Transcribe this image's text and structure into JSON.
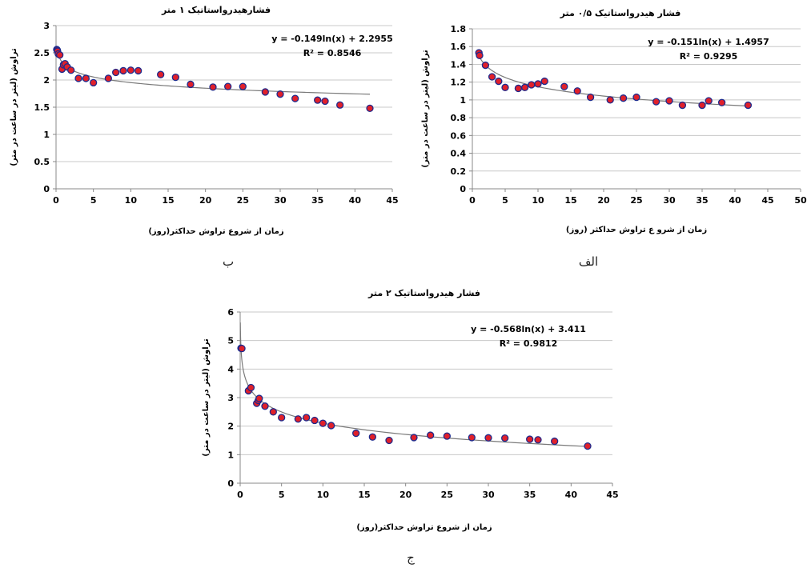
{
  "colors": {
    "marker_fill": "#e0202a",
    "marker_edge": "#1f2a8c",
    "grid": "#c8c8c8",
    "trend": "#7a7a7a"
  },
  "captions": [
    "ب",
    "الف",
    "ج"
  ],
  "chart_data": [
    {
      "type": "scatter",
      "title": "فشارهیدرواستاتیک ۱ متر",
      "xlabel": "زمان از شروع تراوش حداکثر(روز)",
      "ylabel": "تراوش (لیتر در ساعت در متر)",
      "xlim": [
        0,
        45
      ],
      "ylim": [
        0,
        3
      ],
      "xticks": [
        0,
        5,
        10,
        15,
        20,
        25,
        30,
        35,
        40,
        45
      ],
      "yticks": [
        0,
        0.5,
        1,
        1.5,
        2,
        2.5,
        3
      ],
      "grid": "horizontal",
      "trendline": {
        "type": "log",
        "a": -0.149,
        "b": 2.2955,
        "x_range": [
          0.2,
          42
        ]
      },
      "equation": "y = -0.149ln(x) + 2.2955",
      "r2": "R² = 0.8546",
      "points": [
        [
          0.1,
          2.56
        ],
        [
          0.15,
          2.55
        ],
        [
          0.2,
          2.53
        ],
        [
          0.3,
          2.48
        ],
        [
          0.5,
          2.46
        ],
        [
          0.8,
          2.2
        ],
        [
          1,
          2.28
        ],
        [
          1.2,
          2.3
        ],
        [
          1.5,
          2.24
        ],
        [
          2,
          2.18
        ],
        [
          3,
          2.03
        ],
        [
          4,
          2.03
        ],
        [
          5,
          1.95
        ],
        [
          7,
          2.03
        ],
        [
          8,
          2.14
        ],
        [
          9,
          2.17
        ],
        [
          10,
          2.18
        ],
        [
          11,
          2.17
        ],
        [
          14,
          2.1
        ],
        [
          16,
          2.05
        ],
        [
          18,
          1.92
        ],
        [
          21,
          1.87
        ],
        [
          23,
          1.88
        ],
        [
          25,
          1.88
        ],
        [
          28,
          1.78
        ],
        [
          30,
          1.74
        ],
        [
          32,
          1.66
        ],
        [
          35,
          1.63
        ],
        [
          36,
          1.61
        ],
        [
          38,
          1.54
        ],
        [
          42,
          1.48
        ]
      ]
    },
    {
      "type": "scatter",
      "title": "فشار هیدرواستاتیک ۰/۵ متر",
      "xlabel": "زمان از شرو ع تراوش حداکثر (روز)",
      "ylabel": "تراوش (لیتر در ساعت در متر)",
      "xlim": [
        0,
        50
      ],
      "ylim": [
        0,
        1.8
      ],
      "xticks": [
        0,
        5,
        10,
        15,
        20,
        25,
        30,
        35,
        40,
        45,
        50
      ],
      "yticks": [
        0,
        0.2,
        0.4,
        0.6,
        0.8,
        1,
        1.2,
        1.4,
        1.6,
        1.8
      ],
      "grid": "horizontal",
      "trendline": {
        "type": "log",
        "a": -0.151,
        "b": 1.4957,
        "x_range": [
          1,
          42
        ]
      },
      "equation": "y = -0.151ln(x) + 1.4957",
      "r2": "R² = 0.9295",
      "points": [
        [
          1,
          1.53
        ],
        [
          1.1,
          1.5
        ],
        [
          2,
          1.39
        ],
        [
          3,
          1.26
        ],
        [
          4,
          1.21
        ],
        [
          5,
          1.14
        ],
        [
          7,
          1.13
        ],
        [
          8,
          1.14
        ],
        [
          9,
          1.17
        ],
        [
          10,
          1.18
        ],
        [
          11,
          1.21
        ],
        [
          14,
          1.15
        ],
        [
          16,
          1.1
        ],
        [
          18,
          1.03
        ],
        [
          21,
          1.0
        ],
        [
          23,
          1.02
        ],
        [
          25,
          1.03
        ],
        [
          28,
          0.98
        ],
        [
          30,
          0.99
        ],
        [
          32,
          0.94
        ],
        [
          35,
          0.94
        ],
        [
          36,
          0.99
        ],
        [
          38,
          0.97
        ],
        [
          42,
          0.94
        ]
      ]
    },
    {
      "type": "scatter",
      "title": "فشار هیدرواستاتیک ۲ متر",
      "xlabel": "زمان از شروع تراوش حداکثر(روز)",
      "ylabel": "تراوش (لیتر در ساعت در متر)",
      "xlim": [
        0,
        45
      ],
      "ylim": [
        0,
        6
      ],
      "xticks": [
        0,
        5,
        10,
        15,
        20,
        25,
        30,
        35,
        40,
        45
      ],
      "yticks": [
        0,
        1,
        2,
        3,
        4,
        5,
        6
      ],
      "grid": "horizontal",
      "trendline": {
        "type": "log",
        "a": -0.568,
        "b": 3.411,
        "x_range": [
          0.02,
          42
        ]
      },
      "equation": "y = -0.568ln(x) + 3.411",
      "r2": "R² = 0.9812",
      "points": [
        [
          0.1,
          4.73
        ],
        [
          0.2,
          4.72
        ],
        [
          1,
          3.24
        ],
        [
          1.3,
          3.35
        ],
        [
          2,
          2.8
        ],
        [
          2.2,
          2.9
        ],
        [
          2.3,
          2.97
        ],
        [
          3,
          2.7
        ],
        [
          4,
          2.5
        ],
        [
          5,
          2.3
        ],
        [
          7,
          2.25
        ],
        [
          8,
          2.3
        ],
        [
          9,
          2.2
        ],
        [
          10,
          2.1
        ],
        [
          11,
          2.02
        ],
        [
          14,
          1.75
        ],
        [
          16,
          1.62
        ],
        [
          18,
          1.5
        ],
        [
          21,
          1.6
        ],
        [
          23,
          1.68
        ],
        [
          25,
          1.65
        ],
        [
          28,
          1.6
        ],
        [
          30,
          1.59
        ],
        [
          32,
          1.58
        ],
        [
          35,
          1.54
        ],
        [
          36,
          1.52
        ],
        [
          38,
          1.47
        ],
        [
          42,
          1.3
        ]
      ]
    }
  ]
}
